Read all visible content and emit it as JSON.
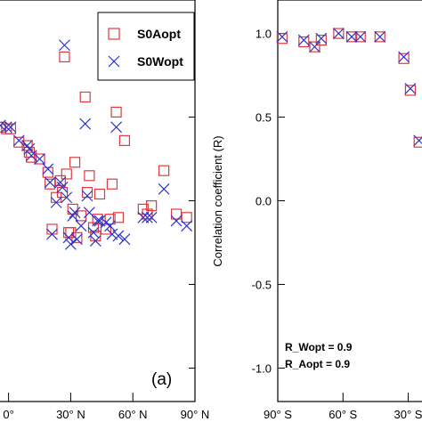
{
  "colors": {
    "aopt": "#e0393e",
    "wopt": "#2b35c9",
    "axis": "#000000"
  },
  "chart_data": [
    {
      "type": "scatter",
      "panel_label": "(a)",
      "xlabel": "",
      "ylabel": "",
      "xlim": [
        -5,
        90
      ],
      "ylim": [
        -1.2,
        1.2
      ],
      "x_ticks": [
        {
          "value": 0,
          "label": "0°"
        },
        {
          "value": 30,
          "label": "30° N"
        },
        {
          "value": 60,
          "label": "60° N"
        },
        {
          "value": 90,
          "label": "90° N"
        }
      ],
      "legend": {
        "position": "top-right",
        "items": [
          {
            "name": "S0Aopt",
            "marker": "square",
            "color": "#e0393e"
          },
          {
            "name": "S0Wopt",
            "marker": "x",
            "color": "#2b35c9"
          }
        ]
      },
      "series": [
        {
          "name": "S0Aopt",
          "marker": "square",
          "color": "#e0393e",
          "points": [
            [
              -4,
              0.44
            ],
            [
              -1,
              0.43
            ],
            [
              1,
              0.43
            ],
            [
              5,
              0.35
            ],
            [
              9,
              0.33
            ],
            [
              10,
              0.29
            ],
            [
              11,
              0.26
            ],
            [
              15,
              0.25
            ],
            [
              19,
              0.17
            ],
            [
              20,
              0.1
            ],
            [
              21,
              -0.17
            ],
            [
              23,
              0.02
            ],
            [
              25,
              0.12
            ],
            [
              26,
              0.05
            ],
            [
              27,
              0.86
            ],
            [
              28,
              0.16
            ],
            [
              29,
              -0.19
            ],
            [
              30,
              -0.19
            ],
            [
              31,
              -0.05
            ],
            [
              32,
              0.23
            ],
            [
              33,
              -0.22
            ],
            [
              35,
              -0.09
            ],
            [
              37,
              0.62
            ],
            [
              38,
              0.05
            ],
            [
              39,
              0.15
            ],
            [
              41,
              -0.16
            ],
            [
              42,
              -0.21
            ],
            [
              43,
              -0.11
            ],
            [
              44,
              0.04
            ],
            [
              47,
              -0.17
            ],
            [
              49,
              -0.11
            ],
            [
              50,
              0.1
            ],
            [
              52,
              0.53
            ],
            [
              53,
              -0.1
            ],
            [
              56,
              0.36
            ],
            [
              65,
              -0.05
            ],
            [
              67,
              -0.08
            ],
            [
              69,
              -0.03
            ],
            [
              75,
              0.18
            ],
            [
              81,
              -0.08
            ],
            [
              86,
              -0.1
            ]
          ]
        },
        {
          "name": "S0Wopt",
          "marker": "x",
          "color": "#2b35c9",
          "points": [
            [
              -4,
              0.45
            ],
            [
              -1,
              0.44
            ],
            [
              1,
              0.44
            ],
            [
              5,
              0.36
            ],
            [
              9,
              0.33
            ],
            [
              10,
              0.31
            ],
            [
              11,
              0.27
            ],
            [
              15,
              0.25
            ],
            [
              19,
              0.19
            ],
            [
              20,
              0.11
            ],
            [
              21,
              -0.2
            ],
            [
              23,
              -0.01
            ],
            [
              25,
              0.11
            ],
            [
              26,
              0.08
            ],
            [
              27,
              0.93
            ],
            [
              28,
              0.02
            ],
            [
              29,
              -0.22
            ],
            [
              30,
              -0.26
            ],
            [
              31,
              -0.09
            ],
            [
              32,
              -0.07
            ],
            [
              33,
              -0.23
            ],
            [
              35,
              -0.15
            ],
            [
              37,
              0.46
            ],
            [
              38,
              0.03
            ],
            [
              39,
              -0.07
            ],
            [
              41,
              -0.19
            ],
            [
              42,
              -0.24
            ],
            [
              43,
              -0.12
            ],
            [
              44,
              -0.12
            ],
            [
              47,
              -0.13
            ],
            [
              49,
              -0.15
            ],
            [
              50,
              -0.2
            ],
            [
              52,
              0.44
            ],
            [
              53,
              -0.21
            ],
            [
              56,
              -0.23
            ],
            [
              65,
              -0.1
            ],
            [
              67,
              -0.1
            ],
            [
              69,
              -0.1
            ],
            [
              75,
              0.07
            ],
            [
              81,
              -0.12
            ],
            [
              86,
              -0.15
            ]
          ]
        }
      ]
    },
    {
      "type": "scatter",
      "xlabel": "",
      "ylabel": "Correlation coefficient (R)",
      "xlim": [
        90,
        22
      ],
      "ylim": [
        -1.2,
        1.2
      ],
      "y_ticks": [
        {
          "value": 1.0,
          "label": "1.0"
        },
        {
          "value": 0.5,
          "label": "0.5"
        },
        {
          "value": 0.0,
          "label": "0.0"
        },
        {
          "value": -0.5,
          "label": "-0.5"
        },
        {
          "value": -1.0,
          "label": "-1.0"
        }
      ],
      "x_ticks": [
        {
          "value": 90,
          "label": "90° S"
        },
        {
          "value": 60,
          "label": "60° S"
        },
        {
          "value": 30,
          "label": "30° S"
        }
      ],
      "annotations": [
        "R_Wopt =  0.9",
        "R_Aopt =  0.9"
      ],
      "series": [
        {
          "name": "S0Aopt",
          "marker": "square",
          "color": "#e0393e",
          "points": [
            [
              88,
              0.97
            ],
            [
              78,
              0.95
            ],
            [
              73,
              0.92
            ],
            [
              70,
              0.96
            ],
            [
              62,
              1.0
            ],
            [
              56,
              0.98
            ],
            [
              52,
              0.98
            ],
            [
              43,
              0.98
            ],
            [
              32,
              0.85
            ],
            [
              29,
              0.66
            ],
            [
              25,
              0.35
            ]
          ]
        },
        {
          "name": "S0Wopt",
          "marker": "x",
          "color": "#2b35c9",
          "points": [
            [
              88,
              0.98
            ],
            [
              78,
              0.96
            ],
            [
              73,
              0.92
            ],
            [
              70,
              0.97
            ],
            [
              62,
              1.0
            ],
            [
              56,
              0.98
            ],
            [
              52,
              0.98
            ],
            [
              43,
              0.98
            ],
            [
              32,
              0.86
            ],
            [
              29,
              0.67
            ],
            [
              25,
              0.36
            ]
          ]
        }
      ]
    }
  ]
}
